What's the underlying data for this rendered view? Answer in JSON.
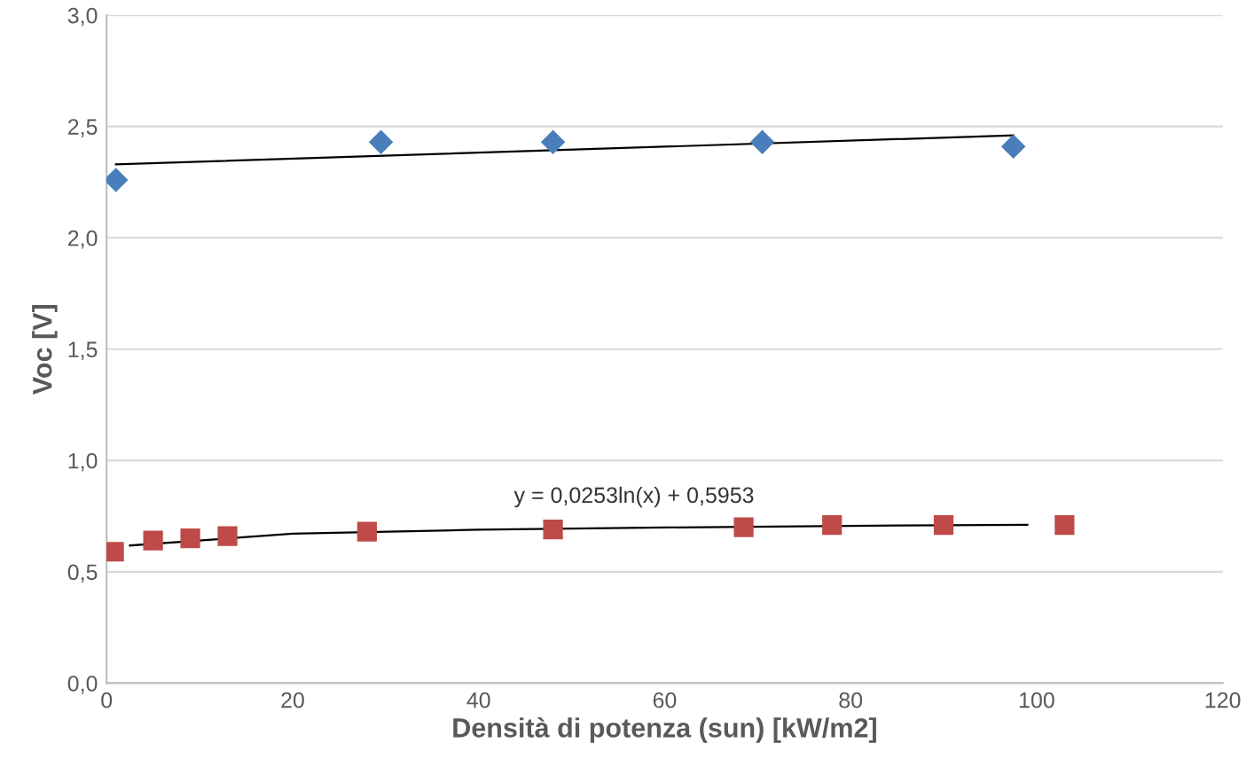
{
  "chart_data": {
    "type": "scatter",
    "xlabel": "Densità di potenza (sun) [kW/m2]",
    "ylabel": "Voc [V]",
    "xlim": [
      0,
      120
    ],
    "xticks": [
      0,
      20,
      40,
      60,
      80,
      100,
      120
    ],
    "ylim": [
      0,
      3
    ],
    "yticks": [
      {
        "value": 0,
        "label": "0,0"
      },
      {
        "value": 0.5,
        "label": "0,5"
      },
      {
        "value": 1,
        "label": "1,0"
      },
      {
        "value": 1.5,
        "label": "1,5"
      },
      {
        "value": 2,
        "label": "2,0"
      },
      {
        "value": 2.5,
        "label": "2,5"
      },
      {
        "value": 3,
        "label": "3,0"
      }
    ],
    "grid": "y",
    "annotations": [
      "y = 0,0253ln(x) + 0,5953"
    ],
    "series": [
      {
        "marker": "diamond",
        "color": "#4a7ebb",
        "x": [
          1,
          29.5,
          48,
          70.5,
          97.5
        ],
        "values": [
          2.26,
          2.43,
          2.43,
          2.43,
          2.41
        ]
      },
      {
        "marker": "square",
        "color": "#be4b48",
        "x": [
          0.8,
          5,
          9,
          13,
          28,
          48,
          68.5,
          78,
          90,
          103
        ],
        "values": [
          0.59,
          0.64,
          0.65,
          0.66,
          0.68,
          0.69,
          0.7,
          0.71,
          0.71,
          0.71
        ]
      },
      {
        "type": "line",
        "color": "#000000",
        "x": [
          1,
          97.5
        ],
        "values": [
          2.33,
          2.46
        ]
      },
      {
        "type": "line",
        "color": "#000000",
        "x": [
          2.5,
          20,
          40,
          60,
          85,
          99
        ],
        "values": [
          0.618,
          0.671,
          0.689,
          0.699,
          0.708,
          0.711
        ]
      }
    ]
  }
}
